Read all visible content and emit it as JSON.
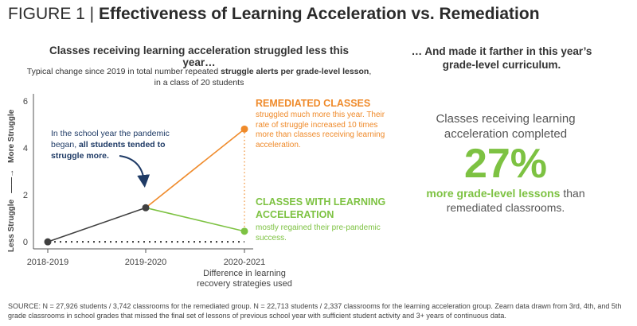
{
  "figure": {
    "label": "FIGURE 1 |",
    "title": "Effectiveness of Learning Acceleration vs. Remediation"
  },
  "left_heading": "Classes receiving learning acceleration struggled less this year…",
  "right_heading": "… And made it farther in this year’s grade-level curriculum.",
  "chart_subtitle": {
    "pre": "Typical change since 2019 in total number repeated ",
    "bold": "struggle alerts per grade-level lesson",
    "post": ", in a class of 20 students"
  },
  "callout": {
    "pre": "In the school year the pandemic began, ",
    "bold": "all students tended to struggle more."
  },
  "remediated": {
    "title": "REMEDIATED CLASSES",
    "desc": "struggled much more this year. Their rate of struggle increased 10 times more than classes receiving learning acceleration."
  },
  "acceleration": {
    "title": "CLASSES WITH LEARNING ACCELERATION",
    "desc": "mostly regained their pre-pandemic success."
  },
  "stat": {
    "pre": "Classes receiving learning acceleration completed",
    "value": "27%",
    "highlight": "more grade-level lessons",
    "post": " than remediated classrooms."
  },
  "source": "SOURCE: N = 27,926 students / 3,742 classrooms for the remediated group. N = 22,713 students / 2,337 classrooms for the learning acceleration group. Zearn data drawn from 3rd, 4th, and 5th grade classrooms in school grades that missed the final set of lessons of previous school year with sufficient student activity and 3+ years of continuous data.",
  "colors": {
    "remediated": "#ef8a2a",
    "acceleration": "#7dc242",
    "baseline": "#404040",
    "callout": "#1f3b66"
  },
  "chart_data": {
    "type": "line",
    "x": [
      "2018-2019",
      "2019-2020",
      "2020-2021"
    ],
    "xlabel": "Difference in learning recovery strategies used",
    "ylabel_low": "Less Struggle",
    "ylabel_high": "More Struggle",
    "yticks": [
      0,
      2,
      4,
      6
    ],
    "ylim": [
      -0.3,
      6.3
    ],
    "series": [
      {
        "name": "All students",
        "x": [
          "2018-2019",
          "2019-2020"
        ],
        "values": [
          0,
          1.45
        ],
        "color": "#404040"
      },
      {
        "name": "REMEDIATED CLASSES",
        "x": [
          "2019-2020",
          "2020-2021"
        ],
        "values": [
          1.45,
          4.8
        ],
        "color": "#ef8a2a"
      },
      {
        "name": "CLASSES WITH LEARNING ACCELERATION",
        "x": [
          "2019-2020",
          "2020-2021"
        ],
        "values": [
          1.45,
          0.45
        ],
        "color": "#7dc242"
      }
    ]
  }
}
